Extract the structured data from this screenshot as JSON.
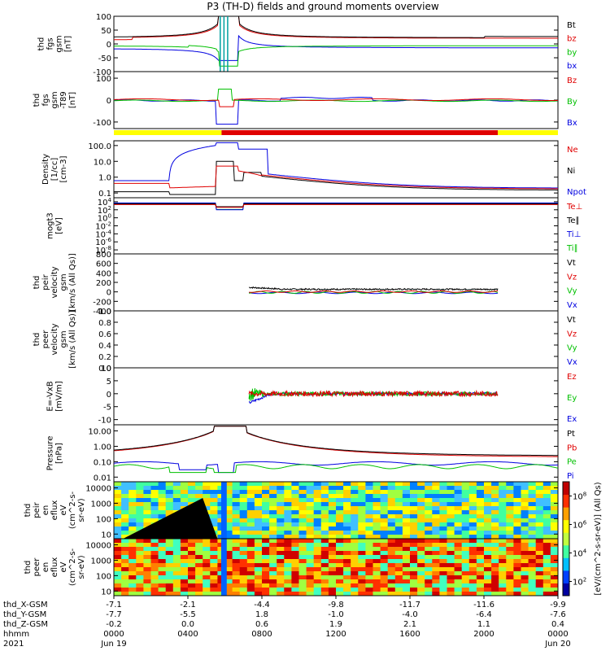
{
  "title": "P3 (TH-D) fields and ground moments overview",
  "chart_data": {
    "type": "line",
    "title": "P3 (TH-D) fields and ground moments overview",
    "x": {
      "ticks": [
        "0000",
        "0400",
        "0800",
        "1200",
        "1600",
        "2000",
        "0000"
      ],
      "dates": [
        {
          "pos": 0,
          "label": "Jun 19"
        },
        {
          "pos": 6,
          "label": "Jun 20"
        }
      ],
      "year": "2021",
      "rows": [
        {
          "name": "thd_X-GSM",
          "values": [
            "-7.1",
            "-2.1",
            "-4.4",
            "-9.8",
            "-11.7",
            "-11.6",
            "-9.9"
          ]
        },
        {
          "name": "thd_Y-GSM",
          "values": [
            "-7.7",
            "-5.5",
            "1.8",
            "-1.0",
            "-4.0",
            "-6.4",
            "-7.6"
          ]
        },
        {
          "name": "thd_Z-GSM",
          "values": [
            "-0.2",
            "0.0",
            "0.6",
            "1.9",
            "2.1",
            "1.1",
            "0.4"
          ]
        },
        {
          "name": "hhmm",
          "values": [
            "0000",
            "0400",
            "0800",
            "1200",
            "1600",
            "2000",
            "0000"
          ]
        }
      ]
    },
    "panels": [
      {
        "id": "fgs",
        "ylabel": [
          "thd",
          "fgs",
          "gsm",
          "[nT]"
        ],
        "yticks": [
          "100",
          "50",
          "0",
          "-50",
          "-100"
        ],
        "ylim": [
          -100,
          100
        ],
        "scale": "linear",
        "legend": [
          {
            "label": "Bt",
            "color": "#000000"
          },
          {
            "label": "bz",
            "color": "#e00000"
          },
          {
            "label": "by",
            "color": "#00c000"
          },
          {
            "label": "bx",
            "color": "#0000e0"
          }
        ]
      },
      {
        "id": "fgs-t89",
        "ylabel": [
          "thd",
          "fgs",
          "gsm",
          "-T89",
          "[nT]"
        ],
        "yticks": [
          "100",
          "0",
          "-100"
        ],
        "ylim": [
          -130,
          130
        ],
        "scale": "linear",
        "legend": [
          {
            "label": "Bz",
            "color": "#e00000"
          },
          {
            "label": "By",
            "color": "#00c000"
          },
          {
            "label": "Bx",
            "color": "#0000e0"
          }
        ]
      },
      {
        "id": "density",
        "ylabel": [
          "Density",
          "[1/cc]",
          "[cm-3]"
        ],
        "yticks": [
          "100.0",
          "10.0",
          "1.0",
          "0.1"
        ],
        "ylim": [
          0.05,
          200
        ],
        "scale": "log",
        "legend": [
          {
            "label": "Ne",
            "color": "#e00000"
          },
          {
            "label": "Ni",
            "color": "#000000"
          },
          {
            "label": "Npot",
            "color": "#0000e0"
          }
        ]
      },
      {
        "id": "temperature",
        "ylabel": [
          "mogt3",
          "[eV]"
        ],
        "yticks": [
          "10^4",
          "10^2",
          "10^0",
          "10^-2",
          "10^-4",
          "10^-6",
          "10^-8"
        ],
        "ylim": [
          1e-09,
          100000.0
        ],
        "scale": "log",
        "legend": [
          {
            "label": "Te⊥",
            "color": "#e00000"
          },
          {
            "label": "Te∥",
            "color": "#000000"
          },
          {
            "label": "Ti⊥",
            "color": "#0000e0"
          },
          {
            "label": "Ti∥",
            "color": "#00c000"
          }
        ]
      },
      {
        "id": "peir-velocity",
        "ylabel": [
          "thd",
          "peir",
          "velocity",
          "gsm",
          "[km/s (All Qs)]"
        ],
        "yticks": [
          "800",
          "600",
          "400",
          "200",
          "0",
          "-200",
          "-400"
        ],
        "ylim": [
          -400,
          800
        ],
        "scale": "linear",
        "legend": [
          {
            "label": "Vt",
            "color": "#000000"
          },
          {
            "label": "Vz",
            "color": "#e00000"
          },
          {
            "label": "Vy",
            "color": "#00c000"
          },
          {
            "label": "Vx",
            "color": "#0000e0"
          }
        ]
      },
      {
        "id": "peer-velocity",
        "ylabel": [
          "thd",
          "peer",
          "velocity",
          "gsm",
          "[km/s (All Qs)]"
        ],
        "yticks": [
          "1.0",
          "0.8",
          "0.6",
          "0.4",
          "0.2",
          "0.0"
        ],
        "ylim": [
          0,
          1
        ],
        "scale": "linear",
        "legend": [
          {
            "label": "Vt",
            "color": "#000000"
          },
          {
            "label": "Vz",
            "color": "#e00000"
          },
          {
            "label": "Vy",
            "color": "#00c000"
          },
          {
            "label": "Vx",
            "color": "#0000e0"
          }
        ]
      },
      {
        "id": "efield",
        "ylabel": [
          "E=-VxB",
          "[mV/m]"
        ],
        "yticks": [
          "10",
          "5",
          "0",
          "-5",
          "-10"
        ],
        "ylim": [
          -12,
          10
        ],
        "scale": "linear",
        "legend": [
          {
            "label": "Ez",
            "color": "#e00000"
          },
          {
            "label": "Ey",
            "color": "#00c000"
          },
          {
            "label": "Ex",
            "color": "#0000e0"
          }
        ]
      },
      {
        "id": "pressure",
        "ylabel": [
          "Pressure",
          "[nPa]"
        ],
        "yticks": [
          "10.00",
          "1.00",
          "0.10",
          "0.01"
        ],
        "ylim": [
          0.005,
          25
        ],
        "scale": "log",
        "legend": [
          {
            "label": "Pt",
            "color": "#000000"
          },
          {
            "label": "Pb",
            "color": "#e00000"
          },
          {
            "label": "Pe",
            "color": "#00c000"
          },
          {
            "label": "Pi",
            "color": "#0000e0"
          }
        ]
      },
      {
        "id": "peir-eflux",
        "ylabel": [
          "thd",
          "peir",
          "en",
          "eflux",
          "eV",
          "(cm^2-s-",
          "sr-eV)"
        ],
        "yticks": [
          "10000",
          "1000",
          "100",
          "10"
        ],
        "ylim": [
          5,
          25000
        ],
        "scale": "log",
        "kind": "spectrogram"
      },
      {
        "id": "peer-eflux",
        "ylabel": [
          "thd",
          "peer",
          "en",
          "eflux",
          "eV",
          "(cm^2-s-",
          "sr-eV)"
        ],
        "yticks": [
          "10000",
          "1000",
          "100",
          "10"
        ],
        "ylim": [
          5,
          25000
        ],
        "scale": "log",
        "kind": "spectrogram"
      }
    ],
    "colorbar": {
      "label": "[eV/(cm^2-s-sr-eV)] (All Qs)",
      "ticks": [
        "10^8",
        "10^6",
        "10^4",
        "10^2"
      ],
      "range": [
        10.0,
        1000000000.0
      ]
    },
    "mode_bar": [
      {
        "start": 0.0,
        "end": 5.82,
        "mode": "slow survey",
        "color": "#ffff00"
      },
      {
        "start": 5.82,
        "end": 20.75,
        "mode": "fast survey",
        "color": "#e00000"
      },
      {
        "start": 20.75,
        "end": 24.0,
        "mode": "slow survey",
        "color": "#ffff00"
      }
    ]
  }
}
